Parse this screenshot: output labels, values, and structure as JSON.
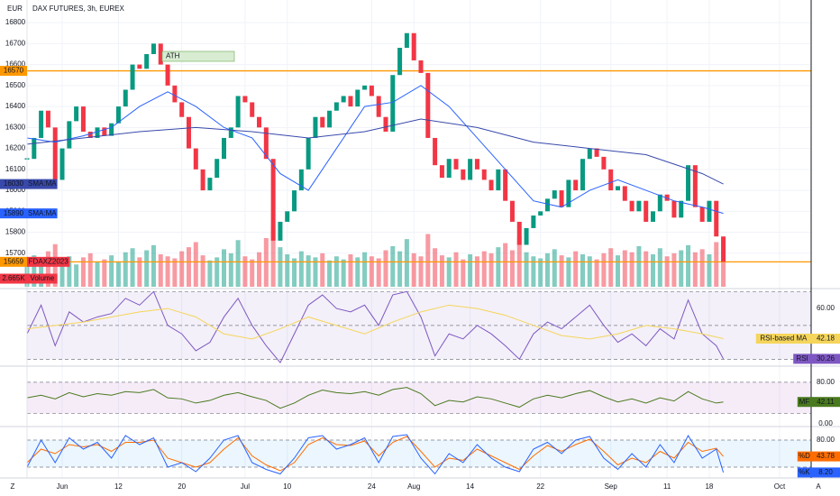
{
  "ui": {
    "currency": "EUR",
    "left_button": "Z",
    "right_button": "A"
  },
  "chart_data": [
    {
      "type": "candlestick",
      "title": "DAX FUTURES, 3h, EUREX",
      "up_color": "#089981",
      "down_color": "#f23645",
      "grid": true,
      "xlim": [
        0,
        112
      ],
      "ylim": [
        15540,
        16865
      ],
      "yticks": [
        15700,
        15800,
        15900,
        16000,
        16100,
        16200,
        16300,
        16400,
        16500,
        16600,
        16700,
        16800
      ],
      "xticks": [
        {
          "value": 5,
          "label": "Jun"
        },
        {
          "value": 13,
          "label": "12"
        },
        {
          "value": 22,
          "label": "20"
        },
        {
          "value": 31,
          "label": "Jul"
        },
        {
          "value": 37,
          "label": "10"
        },
        {
          "value": 49,
          "label": "24"
        },
        {
          "value": 55,
          "label": "Aug"
        },
        {
          "value": 63,
          "label": "14"
        },
        {
          "value": 73,
          "label": "22"
        },
        {
          "value": 83,
          "label": "Sep"
        },
        {
          "value": 91,
          "label": "11"
        },
        {
          "value": 97,
          "label": "18"
        },
        {
          "value": 107,
          "label": "Oct"
        }
      ],
      "values": [
        16150,
        16250,
        16380,
        16300,
        16050,
        16200,
        16330,
        16400,
        16280,
        16250,
        16300,
        16260,
        16320,
        16400,
        16480,
        16600,
        16580,
        16650,
        16700,
        16600,
        16500,
        16420,
        16350,
        16200,
        16100,
        16000,
        16060,
        16150,
        16250,
        16300,
        16450,
        16420,
        16350,
        16300,
        16150,
        15760,
        15850,
        15900,
        16000,
        16100,
        16250,
        16350,
        16300,
        16380,
        16420,
        16450,
        16400,
        16480,
        16500,
        16450,
        16350,
        16280,
        16550,
        16680,
        16750,
        16620,
        16560,
        16250,
        16120,
        16060,
        16150,
        16100,
        16050,
        16150,
        16100,
        16050,
        16000,
        16100,
        15950,
        15850,
        15740,
        15820,
        15880,
        15900,
        15960,
        16000,
        15920,
        16050,
        16000,
        16150,
        16200,
        16160,
        16100,
        16000,
        16020,
        15950,
        15900,
        15950,
        15850,
        15900,
        15980,
        15950,
        15870,
        15950,
        16120,
        15920,
        15850,
        15950,
        15780,
        15659
      ],
      "volume": {
        "name": "Volume",
        "ylim": [
          0,
          8
        ],
        "last_value_label": "2.665K",
        "values": [
          2.5,
          3.1,
          2.8,
          3.5,
          4.2,
          2.6,
          3.0,
          2.2,
          2.9,
          3.3,
          2.4,
          2.7,
          3.1,
          2.5,
          3.4,
          3.8,
          2.9,
          3.6,
          4.1,
          3.2,
          3.0,
          2.8,
          3.5,
          3.9,
          4.4,
          3.1,
          2.6,
          2.9,
          3.7,
          3.3,
          4.6,
          3.0,
          2.7,
          3.4,
          4.8,
          6.0,
          3.9,
          3.2,
          2.8,
          3.5,
          3.1,
          2.9,
          3.3,
          2.6,
          3.0,
          2.7,
          3.2,
          2.9,
          3.4,
          3.0,
          2.8,
          3.6,
          4.0,
          3.5,
          4.7,
          3.3,
          3.0,
          5.2,
          3.8,
          3.1,
          2.9,
          3.4,
          2.7,
          3.2,
          3.0,
          3.5,
          3.3,
          3.9,
          4.3,
          3.6,
          4.9,
          3.4,
          3.0,
          2.8,
          3.3,
          3.7,
          3.1,
          2.9,
          3.5,
          3.2,
          3.0,
          2.7,
          3.3,
          3.8,
          3.1,
          3.6,
          3.4,
          4.0,
          3.5,
          3.2,
          3.8,
          3.0,
          3.3,
          3.6,
          4.1,
          3.4,
          3.7,
          3.2,
          4.4,
          2.665
        ]
      },
      "series": [
        {
          "name": "SMA:MA",
          "color": "#2962ff",
          "x": [
            0,
            4,
            8,
            12,
            16,
            20,
            24,
            28,
            32,
            36,
            40,
            44,
            48,
            52,
            56,
            60,
            64,
            68,
            72,
            76,
            80,
            84,
            88,
            92,
            96,
            99
          ],
          "values": [
            16250,
            16230,
            16260,
            16300,
            16400,
            16470,
            16400,
            16300,
            16250,
            16080,
            16000,
            16200,
            16400,
            16420,
            16500,
            16400,
            16250,
            16100,
            15950,
            15920,
            16000,
            16050,
            16000,
            15950,
            15920,
            15890
          ]
        },
        {
          "name": "SMA:MA",
          "color": "#3949ab",
          "x": [
            0,
            8,
            16,
            24,
            32,
            40,
            48,
            56,
            64,
            72,
            80,
            88,
            96,
            99
          ],
          "values": [
            16220,
            16250,
            16280,
            16300,
            16280,
            16250,
            16280,
            16340,
            16300,
            16230,
            16200,
            16170,
            16080,
            16030
          ]
        }
      ],
      "hlines": [
        {
          "name": "ATH",
          "value": 16570,
          "color": "#ff9800"
        },
        {
          "name": "FDAXZ2023",
          "value": 15659,
          "color": "#ff9800"
        }
      ]
    },
    {
      "type": "indicator",
      "ylim": [
        27,
        70.7
      ],
      "yticks": [
        {
          "value": 60,
          "label": "60.00"
        }
      ],
      "bands": [
        70,
        50,
        30
      ],
      "band_color": "#7e57c2",
      "series": [
        {
          "name": "RSI",
          "color": "#7e57c2",
          "last_value_label": "30.26",
          "x": [
            0,
            2,
            4,
            6,
            8,
            10,
            12,
            14,
            16,
            18,
            20,
            22,
            24,
            26,
            28,
            30,
            32,
            34,
            36,
            38,
            40,
            42,
            44,
            46,
            48,
            50,
            52,
            54,
            56,
            58,
            60,
            62,
            64,
            66,
            68,
            70,
            72,
            74,
            76,
            78,
            80,
            82,
            84,
            86,
            88,
            90,
            92,
            94,
            96,
            98,
            99
          ],
          "values": [
            45,
            62,
            38,
            58,
            52,
            55,
            57,
            66,
            62,
            70,
            50,
            45,
            35,
            40,
            55,
            66,
            50,
            38,
            28,
            45,
            62,
            68,
            60,
            58,
            62,
            50,
            68,
            70,
            55,
            32,
            45,
            42,
            50,
            45,
            38,
            30,
            45,
            52,
            48,
            55,
            62,
            50,
            40,
            45,
            38,
            48,
            42,
            65,
            45,
            38,
            30.26
          ]
        },
        {
          "name": "RSI-based MA",
          "color": "#f5d55b",
          "last_value_label": "42.18",
          "x": [
            0,
            4,
            8,
            12,
            16,
            20,
            24,
            28,
            32,
            36,
            40,
            44,
            48,
            52,
            56,
            60,
            64,
            68,
            72,
            76,
            80,
            84,
            88,
            92,
            96,
            99
          ],
          "values": [
            48,
            50,
            52,
            55,
            58,
            60,
            55,
            45,
            42,
            48,
            55,
            50,
            45,
            52,
            58,
            62,
            60,
            56,
            50,
            44,
            42,
            45,
            50,
            48,
            45,
            42.18
          ]
        }
      ]
    },
    {
      "type": "indicator",
      "ylim": [
        0,
        104
      ],
      "yticks": [
        {
          "value": 80,
          "label": "80.00"
        },
        {
          "value": 0,
          "label": "0.00"
        }
      ],
      "bands": [
        80,
        20
      ],
      "band_color": "#9c27b0",
      "series": [
        {
          "name": "MF",
          "color": "#4a7a1f",
          "last_value_label": "42.11",
          "x": [
            0,
            2,
            4,
            6,
            8,
            10,
            12,
            14,
            16,
            18,
            20,
            22,
            24,
            26,
            28,
            30,
            32,
            34,
            36,
            38,
            40,
            42,
            44,
            46,
            48,
            50,
            52,
            54,
            56,
            58,
            60,
            62,
            64,
            66,
            68,
            70,
            72,
            74,
            76,
            78,
            80,
            82,
            84,
            86,
            88,
            90,
            92,
            94,
            96,
            98,
            99
          ],
          "values": [
            50,
            55,
            48,
            60,
            52,
            58,
            55,
            62,
            60,
            66,
            50,
            48,
            40,
            45,
            55,
            60,
            52,
            45,
            30,
            40,
            55,
            65,
            60,
            58,
            62,
            55,
            66,
            70,
            58,
            35,
            45,
            42,
            52,
            48,
            40,
            32,
            48,
            55,
            50,
            58,
            64,
            52,
            42,
            48,
            40,
            50,
            44,
            62,
            48,
            40,
            42.11
          ]
        }
      ]
    },
    {
      "type": "indicator",
      "ylim": [
        0,
        104
      ],
      "yticks": [
        {
          "value": 80,
          "label": "80.00"
        }
      ],
      "bands": [
        80,
        20
      ],
      "band_color": "#2196f3",
      "series": [
        {
          "name": "%D",
          "color": "#ff6d00",
          "last_value_label": "43.78",
          "x": [
            0,
            2,
            4,
            6,
            8,
            10,
            12,
            14,
            16,
            18,
            20,
            22,
            24,
            26,
            28,
            30,
            32,
            34,
            36,
            38,
            40,
            42,
            44,
            46,
            48,
            50,
            52,
            54,
            56,
            58,
            60,
            62,
            64,
            66,
            68,
            70,
            72,
            74,
            76,
            78,
            80,
            82,
            84,
            86,
            88,
            90,
            92,
            94,
            96,
            98,
            99
          ],
          "values": [
            30,
            60,
            50,
            70,
            65,
            70,
            55,
            75,
            75,
            80,
            40,
            30,
            20,
            30,
            60,
            85,
            45,
            25,
            12,
            30,
            70,
            85,
            70,
            68,
            78,
            45,
            75,
            88,
            55,
            20,
            40,
            35,
            60,
            45,
            30,
            15,
            45,
            68,
            55,
            70,
            82,
            55,
            25,
            40,
            30,
            55,
            40,
            75,
            55,
            62,
            43.78
          ]
        },
        {
          "name": "%K",
          "color": "#2962ff",
          "last_value_label": "8.20",
          "x": [
            0,
            2,
            4,
            6,
            8,
            10,
            12,
            14,
            16,
            18,
            20,
            22,
            24,
            26,
            28,
            30,
            32,
            34,
            36,
            38,
            40,
            42,
            44,
            46,
            48,
            50,
            52,
            54,
            56,
            58,
            60,
            62,
            64,
            66,
            68,
            70,
            72,
            74,
            76,
            78,
            80,
            82,
            84,
            86,
            88,
            90,
            92,
            94,
            96,
            98,
            99
          ],
          "values": [
            20,
            80,
            30,
            85,
            60,
            75,
            40,
            90,
            70,
            85,
            20,
            30,
            10,
            40,
            80,
            90,
            30,
            15,
            5,
            40,
            85,
            90,
            60,
            70,
            85,
            30,
            88,
            92,
            40,
            5,
            50,
            30,
            70,
            40,
            20,
            10,
            60,
            75,
            50,
            80,
            88,
            40,
            15,
            50,
            20,
            70,
            30,
            90,
            40,
            60,
            8.2
          ]
        }
      ]
    }
  ]
}
